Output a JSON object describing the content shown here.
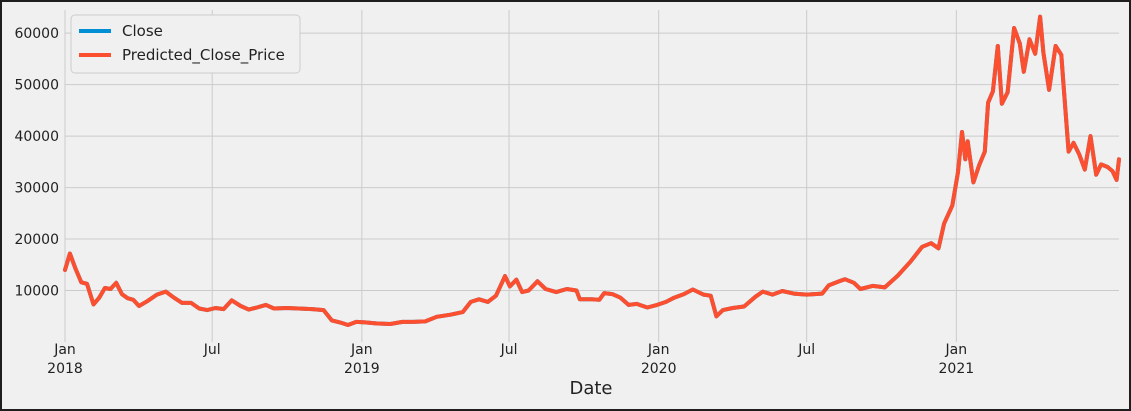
{
  "chart_data": {
    "type": "line",
    "title": "",
    "xlabel": "Date",
    "ylabel": "",
    "x_range": [
      "2018-01-01",
      "2021-07-20"
    ],
    "ylim": [
      0,
      64500
    ],
    "grid": true,
    "legend_position": "top-left",
    "y_ticks": [
      {
        "value": 10000,
        "label": "10000"
      },
      {
        "value": 20000,
        "label": "20000"
      },
      {
        "value": 30000,
        "label": "30000"
      },
      {
        "value": 40000,
        "label": "40000"
      },
      {
        "value": 50000,
        "label": "50000"
      },
      {
        "value": 60000,
        "label": "60000"
      }
    ],
    "x_ticks": [
      {
        "date": "2018-01-01",
        "label": "Jan",
        "sublabel": "2018"
      },
      {
        "date": "2018-07-01",
        "label": "Jul",
        "sublabel": ""
      },
      {
        "date": "2019-01-01",
        "label": "Jan",
        "sublabel": "2019"
      },
      {
        "date": "2019-07-01",
        "label": "Jul",
        "sublabel": ""
      },
      {
        "date": "2020-01-01",
        "label": "Jan",
        "sublabel": "2020"
      },
      {
        "date": "2020-07-01",
        "label": "Jul",
        "sublabel": ""
      },
      {
        "date": "2021-01-01",
        "label": "Jan",
        "sublabel": "2021"
      }
    ],
    "series": [
      {
        "name": "Close",
        "color": "#008fd5",
        "points": [
          [
            "2018-01-01",
            14000
          ],
          [
            "2018-01-07",
            17200
          ],
          [
            "2018-01-14",
            14200
          ],
          [
            "2018-01-21",
            11600
          ],
          [
            "2018-01-28",
            11300
          ],
          [
            "2018-02-05",
            7300
          ],
          [
            "2018-02-12",
            8600
          ],
          [
            "2018-02-19",
            10500
          ],
          [
            "2018-02-26",
            10300
          ],
          [
            "2018-03-05",
            11500
          ],
          [
            "2018-03-12",
            9300
          ],
          [
            "2018-03-19",
            8500
          ],
          [
            "2018-03-26",
            8200
          ],
          [
            "2018-04-02",
            7000
          ],
          [
            "2018-04-12",
            7900
          ],
          [
            "2018-04-24",
            9200
          ],
          [
            "2018-05-05",
            9800
          ],
          [
            "2018-05-15",
            8600
          ],
          [
            "2018-05-25",
            7600
          ],
          [
            "2018-06-05",
            7600
          ],
          [
            "2018-06-15",
            6500
          ],
          [
            "2018-06-25",
            6200
          ],
          [
            "2018-07-05",
            6600
          ],
          [
            "2018-07-15",
            6400
          ],
          [
            "2018-07-25",
            8100
          ],
          [
            "2018-08-05",
            7000
          ],
          [
            "2018-08-15",
            6300
          ],
          [
            "2018-08-25",
            6700
          ],
          [
            "2018-09-05",
            7200
          ],
          [
            "2018-09-15",
            6500
          ],
          [
            "2018-10-01",
            6600
          ],
          [
            "2018-10-15",
            6500
          ],
          [
            "2018-11-01",
            6400
          ],
          [
            "2018-11-15",
            6200
          ],
          [
            "2018-11-25",
            4200
          ],
          [
            "2018-12-05",
            3800
          ],
          [
            "2018-12-15",
            3300
          ],
          [
            "2018-12-25",
            3900
          ],
          [
            "2019-01-05",
            3800
          ],
          [
            "2019-01-20",
            3600
          ],
          [
            "2019-02-05",
            3500
          ],
          [
            "2019-02-20",
            3900
          ],
          [
            "2019-03-05",
            3900
          ],
          [
            "2019-03-20",
            4000
          ],
          [
            "2019-04-03",
            4900
          ],
          [
            "2019-04-20",
            5300
          ],
          [
            "2019-05-05",
            5800
          ],
          [
            "2019-05-15",
            7800
          ],
          [
            "2019-05-25",
            8300
          ],
          [
            "2019-06-05",
            7800
          ],
          [
            "2019-06-15",
            9000
          ],
          [
            "2019-06-26",
            12800
          ],
          [
            "2019-07-02",
            10800
          ],
          [
            "2019-07-10",
            12100
          ],
          [
            "2019-07-17",
            9700
          ],
          [
            "2019-07-25",
            10000
          ],
          [
            "2019-08-05",
            11800
          ],
          [
            "2019-08-15",
            10300
          ],
          [
            "2019-08-28",
            9700
          ],
          [
            "2019-09-10",
            10300
          ],
          [
            "2019-09-22",
            10000
          ],
          [
            "2019-09-26",
            8300
          ],
          [
            "2019-10-10",
            8300
          ],
          [
            "2019-10-20",
            8200
          ],
          [
            "2019-10-26",
            9500
          ],
          [
            "2019-11-05",
            9300
          ],
          [
            "2019-11-15",
            8600
          ],
          [
            "2019-11-25",
            7200
          ],
          [
            "2019-12-05",
            7400
          ],
          [
            "2019-12-18",
            6700
          ],
          [
            "2019-12-30",
            7200
          ],
          [
            "2020-01-10",
            7800
          ],
          [
            "2020-01-20",
            8600
          ],
          [
            "2020-02-01",
            9300
          ],
          [
            "2020-02-12",
            10200
          ],
          [
            "2020-02-25",
            9200
          ],
          [
            "2020-03-05",
            9000
          ],
          [
            "2020-03-12",
            5000
          ],
          [
            "2020-03-20",
            6200
          ],
          [
            "2020-04-01",
            6600
          ],
          [
            "2020-04-15",
            6900
          ],
          [
            "2020-04-29",
            8800
          ],
          [
            "2020-05-08",
            9800
          ],
          [
            "2020-05-20",
            9200
          ],
          [
            "2020-06-01",
            9900
          ],
          [
            "2020-06-15",
            9400
          ],
          [
            "2020-07-01",
            9200
          ],
          [
            "2020-07-20",
            9400
          ],
          [
            "2020-07-28",
            11000
          ],
          [
            "2020-08-10",
            11800
          ],
          [
            "2020-08-17",
            12200
          ],
          [
            "2020-08-28",
            11500
          ],
          [
            "2020-09-05",
            10300
          ],
          [
            "2020-09-20",
            10900
          ],
          [
            "2020-10-05",
            10600
          ],
          [
            "2020-10-21",
            12900
          ],
          [
            "2020-11-05",
            15500
          ],
          [
            "2020-11-20",
            18500
          ],
          [
            "2020-12-01",
            19200
          ],
          [
            "2020-12-10",
            18200
          ],
          [
            "2020-12-17",
            23000
          ],
          [
            "2020-12-27",
            26500
          ],
          [
            "2021-01-03",
            33000
          ],
          [
            "2021-01-08",
            40800
          ],
          [
            "2021-01-12",
            35500
          ],
          [
            "2021-01-15",
            39000
          ],
          [
            "2021-01-22",
            31000
          ],
          [
            "2021-01-29",
            34300
          ],
          [
            "2021-02-05",
            37000
          ],
          [
            "2021-02-09",
            46500
          ],
          [
            "2021-02-15",
            48700
          ],
          [
            "2021-02-21",
            57500
          ],
          [
            "2021-02-26",
            46300
          ],
          [
            "2021-03-05",
            48500
          ],
          [
            "2021-03-13",
            61000
          ],
          [
            "2021-03-20",
            58000
          ],
          [
            "2021-03-25",
            52500
          ],
          [
            "2021-04-01",
            58800
          ],
          [
            "2021-04-08",
            56000
          ],
          [
            "2021-04-14",
            63200
          ],
          [
            "2021-04-18",
            56200
          ],
          [
            "2021-04-25",
            49000
          ],
          [
            "2021-05-03",
            57500
          ],
          [
            "2021-05-10",
            55800
          ],
          [
            "2021-05-13",
            49500
          ],
          [
            "2021-05-19",
            37000
          ],
          [
            "2021-05-25",
            38700
          ],
          [
            "2021-06-01",
            36500
          ],
          [
            "2021-06-08",
            33500
          ],
          [
            "2021-06-15",
            40000
          ],
          [
            "2021-06-22",
            32500
          ],
          [
            "2021-06-28",
            34500
          ],
          [
            "2021-07-06",
            34000
          ],
          [
            "2021-07-12",
            33200
          ],
          [
            "2021-07-17",
            31500
          ],
          [
            "2021-07-20",
            35500
          ]
        ]
      },
      {
        "name": "Predicted_Close_Price",
        "color": "#fc4f30",
        "same_as": "Close"
      }
    ]
  }
}
